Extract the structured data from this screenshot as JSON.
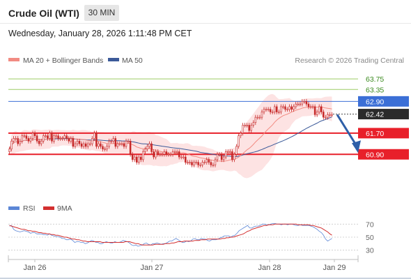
{
  "header": {
    "title": "Crude Oil (WTI)",
    "timeframe": "30 MIN",
    "datetime": "Wednesday, January 28, 2026 1:11:48 PM CET"
  },
  "legend": {
    "ma20_label": "MA 20 + Bollinger Bands",
    "ma50_label": "MA 50",
    "credit": "Research © 2026 Trading Central",
    "rsi_label": "RSI",
    "rsi_ma_label": "9MA"
  },
  "colors": {
    "candle": "#c62828",
    "ma20": "#f28b82",
    "bollinger_fill": "#fde0e0",
    "ma50": "#3c5a99",
    "resistance_green": "#9ccc65",
    "pivot_blue": "#3b6fd6",
    "support_red": "#e8202a",
    "current_price_box": "#2b2b2b",
    "arrow": "#2e5fa8",
    "rsi": "#5b86d6",
    "rsi_ma": "#d32f2f"
  },
  "chart_data": [
    {
      "type": "candlestick",
      "x_labels": [
        "Jan 26",
        "Jan 27",
        "Jan 28",
        "Jan 29"
      ],
      "ylim": [
        59.3,
        64.2
      ],
      "close": [
        61.1,
        61.4,
        61.5,
        61.5,
        61.3,
        61.4,
        61.6,
        61.6,
        61.5,
        61.4,
        61.5,
        61.7,
        61.6,
        61.4,
        61.3,
        61.4,
        61.6,
        61.6,
        61.5,
        61.7,
        61.4,
        61.6,
        61.6,
        61.5,
        61.5,
        61.5,
        61.6,
        61.5,
        61.4,
        61.5,
        61.2,
        61.3,
        61.4,
        61.3,
        61.2,
        61.3,
        61.2,
        61.3,
        61.3,
        61.5,
        61.7,
        61.2,
        61.3,
        61.2,
        61.1,
        61.1,
        61.2,
        61.4,
        61.4,
        61.5,
        61.2,
        61.3,
        61.3,
        61.3,
        61.2,
        61.4,
        61.4,
        60.9,
        60.7,
        60.8,
        60.6,
        60.8,
        60.7,
        61.0,
        61.1,
        61.2,
        61.3,
        61.0,
        60.8,
        61.0,
        60.9,
        60.9,
        60.9,
        61.0,
        60.9,
        60.9,
        60.9,
        61.0,
        61.0,
        61.0,
        60.8,
        60.8,
        60.8,
        60.6,
        60.6,
        60.6,
        60.5,
        60.6,
        60.6,
        60.5,
        60.5,
        60.6,
        60.6,
        60.7,
        60.6,
        60.5,
        60.5,
        60.7,
        60.9,
        60.9,
        60.7,
        60.8,
        61.0,
        61.0,
        61.0,
        60.7,
        60.9,
        61.2,
        61.6,
        61.7,
        62.0,
        62.0,
        62.0,
        61.8,
        62.0,
        62.1,
        62.3,
        62.3,
        62.3,
        62.5,
        62.6,
        62.6,
        62.6,
        62.5,
        62.5,
        62.7,
        62.5,
        62.5,
        62.7,
        62.7,
        62.6,
        62.6,
        62.7,
        62.6,
        62.7,
        62.8,
        62.8,
        62.8,
        62.9,
        62.9,
        62.8,
        62.7,
        62.7,
        62.7,
        62.4,
        62.5,
        62.7,
        62.5,
        62.3,
        62.3,
        62.4,
        62.4,
        62.4
      ],
      "open": [
        61.0,
        61.1,
        61.4,
        61.5,
        61.5,
        61.3,
        61.4,
        61.6,
        61.6,
        61.5,
        61.4,
        61.5,
        61.7,
        61.6,
        61.4,
        61.3,
        61.4,
        61.6,
        61.6,
        61.5,
        61.7,
        61.4,
        61.6,
        61.6,
        61.5,
        61.5,
        61.5,
        61.6,
        61.5,
        61.4,
        61.5,
        61.2,
        61.3,
        61.4,
        61.3,
        61.2,
        61.3,
        61.2,
        61.3,
        61.3,
        61.5,
        61.7,
        61.2,
        61.3,
        61.2,
        61.1,
        61.1,
        61.2,
        61.4,
        61.4,
        61.5,
        61.2,
        61.3,
        61.3,
        61.3,
        61.2,
        61.4,
        61.4,
        60.9,
        60.7,
        60.8,
        60.6,
        60.8,
        60.7,
        61.0,
        61.1,
        61.2,
        61.3,
        61.0,
        60.8,
        61.0,
        60.9,
        60.9,
        60.9,
        61.0,
        60.9,
        60.9,
        60.9,
        61.0,
        61.0,
        61.0,
        60.8,
        60.8,
        60.8,
        60.6,
        60.6,
        60.6,
        60.5,
        60.6,
        60.6,
        60.5,
        60.5,
        60.6,
        60.6,
        60.7,
        60.6,
        60.5,
        60.5,
        60.7,
        60.9,
        60.9,
        60.7,
        60.8,
        61.0,
        61.0,
        61.0,
        60.7,
        60.9,
        61.2,
        61.6,
        61.7,
        62.0,
        62.0,
        62.0,
        61.8,
        62.0,
        62.1,
        62.3,
        62.3,
        62.3,
        62.5,
        62.6,
        62.6,
        62.6,
        62.5,
        62.5,
        62.7,
        62.5,
        62.5,
        62.7,
        62.7,
        62.6,
        62.6,
        62.7,
        62.6,
        62.7,
        62.8,
        62.8,
        62.8,
        62.9,
        62.9,
        62.8,
        62.7,
        62.7,
        62.7,
        62.4,
        62.5,
        62.7,
        62.5,
        62.3,
        62.3,
        62.4,
        62.4
      ],
      "levels": [
        {
          "value": 63.75,
          "label": "63.75",
          "role": "resistance"
        },
        {
          "value": 63.35,
          "label": "63.35",
          "role": "resistance"
        },
        {
          "value": 62.9,
          "label": "62.90",
          "role": "pivot"
        },
        {
          "value": 62.42,
          "label": "62.42",
          "role": "last"
        },
        {
          "value": 61.7,
          "label": "61.70",
          "role": "support"
        },
        {
          "value": 60.9,
          "label": "60.90",
          "role": "support"
        }
      ]
    },
    {
      "type": "line",
      "ylim": [
        20,
        80
      ],
      "y_ticks": [
        "70",
        "50",
        "30"
      ],
      "series": [
        {
          "name": "RSI",
          "values": [
            67,
            68,
            62,
            60,
            59,
            58,
            59,
            60,
            59,
            58,
            56,
            57,
            57,
            55,
            55,
            55,
            54,
            54,
            53,
            55,
            53,
            52,
            51,
            51,
            50,
            48,
            48,
            46,
            46,
            47,
            45,
            42,
            43,
            43,
            42,
            42,
            40,
            41,
            43,
            45,
            44,
            42,
            42,
            40,
            40,
            42,
            43,
            42,
            41,
            41,
            43,
            42,
            42,
            43,
            45,
            44,
            43,
            41,
            38,
            37,
            38,
            36,
            37,
            38,
            40,
            41,
            39,
            38,
            40,
            40,
            41,
            40,
            39,
            40,
            40,
            42,
            44,
            44,
            46,
            48,
            46,
            44,
            42,
            42,
            44,
            43,
            44,
            47,
            48,
            46,
            46,
            48,
            47,
            47,
            45,
            44,
            46,
            46,
            46,
            47,
            49,
            50,
            52,
            52,
            52,
            50,
            52,
            53,
            56,
            60,
            62,
            64,
            66,
            68,
            64,
            64,
            66,
            67,
            67,
            68,
            70,
            70,
            69,
            69,
            70,
            71,
            71,
            70,
            70,
            69,
            70,
            70,
            69,
            70,
            70,
            69,
            68,
            68,
            69,
            68,
            68,
            68,
            68,
            67,
            66,
            64,
            62,
            59,
            57,
            53,
            47,
            44,
            46,
            48
          ]
        },
        {
          "name": "9MA",
          "values": [
            68,
            67,
            66,
            65,
            64,
            63,
            62,
            62,
            61,
            60,
            60,
            59,
            59,
            58,
            57,
            57,
            56,
            56,
            55,
            55,
            54,
            54,
            53,
            53,
            52,
            51,
            50,
            50,
            49,
            48,
            47,
            47,
            46,
            46,
            45,
            44,
            44,
            43,
            43,
            43,
            43,
            43,
            43,
            43,
            42,
            42,
            42,
            42,
            42,
            42,
            42,
            42,
            42,
            42,
            42,
            43,
            43,
            43,
            42,
            41,
            40,
            40,
            39,
            38,
            38,
            38,
            38,
            38,
            38,
            39,
            39,
            39,
            39,
            39,
            40,
            40,
            40,
            41,
            41,
            42,
            43,
            43,
            43,
            44,
            44,
            44,
            44,
            44,
            45,
            45,
            45,
            46,
            46,
            46,
            47,
            47,
            47,
            47,
            47,
            47,
            47,
            48,
            48,
            49,
            49,
            50,
            50,
            51,
            52,
            53,
            54,
            55,
            57,
            59,
            60,
            62,
            63,
            64,
            65,
            66,
            67,
            68,
            68,
            69,
            69,
            69,
            70,
            70,
            70,
            70,
            70,
            70,
            70,
            70,
            70,
            70,
            70,
            69,
            69,
            69,
            69,
            69,
            69,
            68,
            68,
            67,
            66,
            65,
            64,
            62,
            60,
            58,
            55,
            53
          ]
        }
      ]
    }
  ]
}
